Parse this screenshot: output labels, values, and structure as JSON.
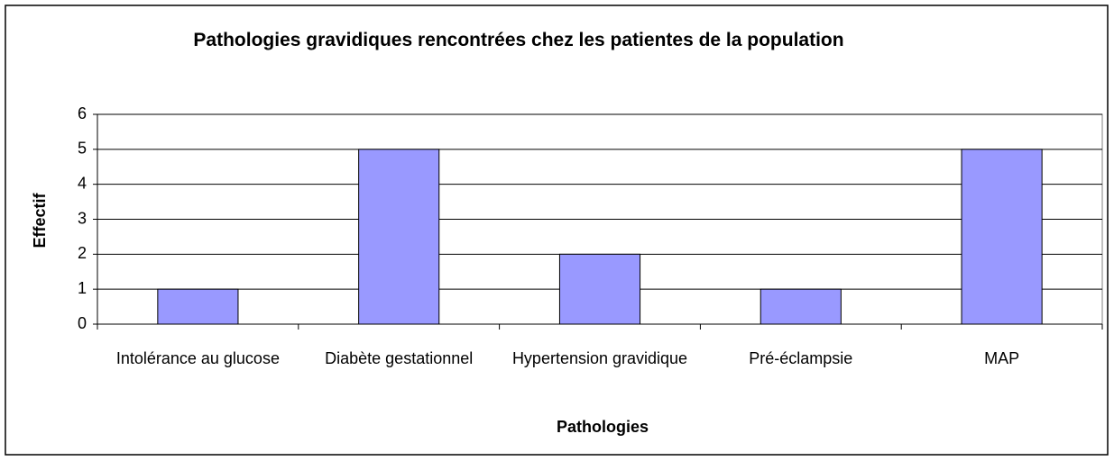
{
  "chart_data": {
    "type": "bar",
    "title": "Pathologies gravidiques rencontrées chez les patientes de la population",
    "xlabel": "Pathologies",
    "ylabel": "Effectif",
    "categories": [
      "Intolérance au glucose",
      "Diabète gestationnel",
      "Hypertension gravidique",
      "Pré-éclampsie",
      "MAP"
    ],
    "values": [
      1,
      5,
      2,
      1,
      5
    ],
    "color": "#9999ff",
    "ylim": [
      0,
      6
    ],
    "yticks": [
      0,
      1,
      2,
      3,
      4,
      5,
      6
    ],
    "grid": true
  }
}
